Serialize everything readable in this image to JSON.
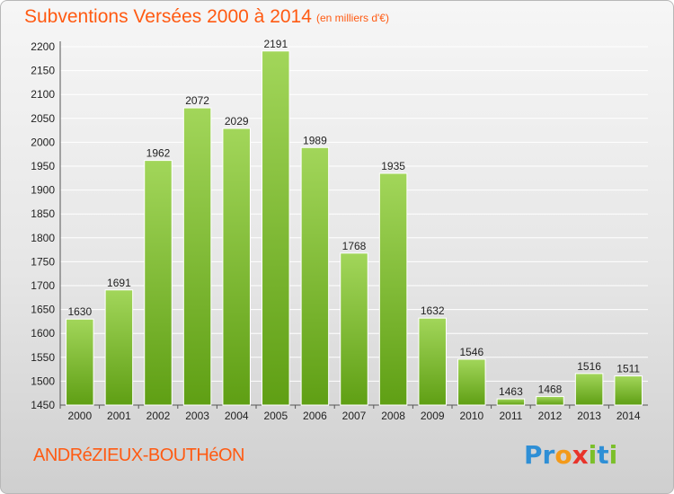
{
  "chart_data": {
    "type": "bar",
    "title": "Subventions Versées 2000 à 2014",
    "subtitle": "(en milliers d'€)",
    "categories": [
      "2000",
      "2001",
      "2002",
      "2003",
      "2004",
      "2005",
      "2006",
      "2007",
      "2008",
      "2009",
      "2010",
      "2011",
      "2012",
      "2013",
      "2014"
    ],
    "values": [
      1630,
      1691,
      1962,
      2072,
      2029,
      2191,
      1989,
      1768,
      1935,
      1632,
      1546,
      1463,
      1468,
      1516,
      1511
    ],
    "ylim": [
      1450,
      2200
    ],
    "yticks": [
      1450,
      1500,
      1550,
      1600,
      1650,
      1700,
      1750,
      1800,
      1850,
      1900,
      1950,
      2000,
      2050,
      2100,
      2150,
      2200
    ],
    "xlabel": "",
    "ylabel": "",
    "grid": true,
    "bar_color_top": "#9bd14d",
    "bar_color_bottom": "#5e9e12"
  },
  "footer": {
    "place": "ANDRéZIEUX-BOUTHéON",
    "brand_letters": [
      {
        "char": "P",
        "color": "#2e8fd6"
      },
      {
        "char": "r",
        "color": "#2e8fd6"
      },
      {
        "char": "o",
        "color": "#f39a1a"
      },
      {
        "char": "x",
        "color": "#e8332a"
      },
      {
        "char": "i",
        "color": "#7bbf2a"
      },
      {
        "char": "t",
        "color": "#2e8fd6"
      },
      {
        "char": "i",
        "color": "#7bbf2a"
      }
    ]
  },
  "colors": {
    "accent": "#ff5a12"
  }
}
